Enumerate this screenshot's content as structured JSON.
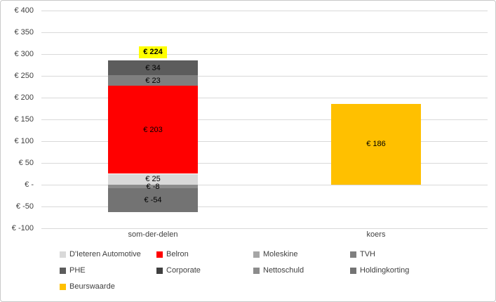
{
  "chart_data": {
    "type": "bar",
    "variant": "stacked-column",
    "title": "",
    "categories": [
      "som-der-delen",
      "koers"
    ],
    "series": [
      {
        "name": "D'Ieteren Automotive",
        "color": "#D9D9D9",
        "values": [
          25,
          0
        ]
      },
      {
        "name": "Belron",
        "color": "#FF0000",
        "values": [
          203,
          0
        ]
      },
      {
        "name": "Moleskine",
        "color": "#A6A6A6",
        "values": [
          0,
          0
        ]
      },
      {
        "name": "TVH",
        "color": "#7F7F7F",
        "values": [
          23,
          0
        ]
      },
      {
        "name": "PHE",
        "color": "#5C5C5C",
        "values": [
          34,
          0
        ]
      },
      {
        "name": "Corporate",
        "color": "#404040",
        "values": [
          0,
          0
        ]
      },
      {
        "name": "Nettoschuld",
        "color": "#8C8C8C",
        "values": [
          -8,
          0
        ]
      },
      {
        "name": "Holdingkorting",
        "color": "#737373",
        "values": [
          -54,
          0
        ]
      },
      {
        "name": "Beurswaarde",
        "color": "#FFC000",
        "values": [
          0,
          186
        ]
      }
    ],
    "data_label_prefix": "€ ",
    "segment_labels": [
      "€ 25",
      "€ 203",
      "€ 23",
      "€ 34",
      "€ -8",
      "€ -54",
      "€ 186"
    ],
    "total_labels": [
      {
        "category_index": 0,
        "text": "€ 224",
        "highlight_color": "#FFFF00"
      }
    ],
    "ylim": [
      -100,
      400
    ],
    "ytick_step": 50,
    "yticks": [
      {
        "value": 400,
        "label": "€ 400"
      },
      {
        "value": 350,
        "label": "€ 350"
      },
      {
        "value": 300,
        "label": "€ 300"
      },
      {
        "value": 250,
        "label": "€ 250"
      },
      {
        "value": 200,
        "label": "€ 200"
      },
      {
        "value": 150,
        "label": "€ 150"
      },
      {
        "value": 100,
        "label": "€ 100"
      },
      {
        "value": 50,
        "label": "€ 50"
      },
      {
        "value": 0,
        "label": "€ -"
      },
      {
        "value": -50,
        "label": "€ -50"
      },
      {
        "value": -100,
        "label": "€ -100"
      }
    ],
    "grid": true,
    "gridline_color": "#D9D9D9",
    "axis_text_color": "#404040",
    "value_label_color": "#000000",
    "legend_position": "bottom"
  }
}
